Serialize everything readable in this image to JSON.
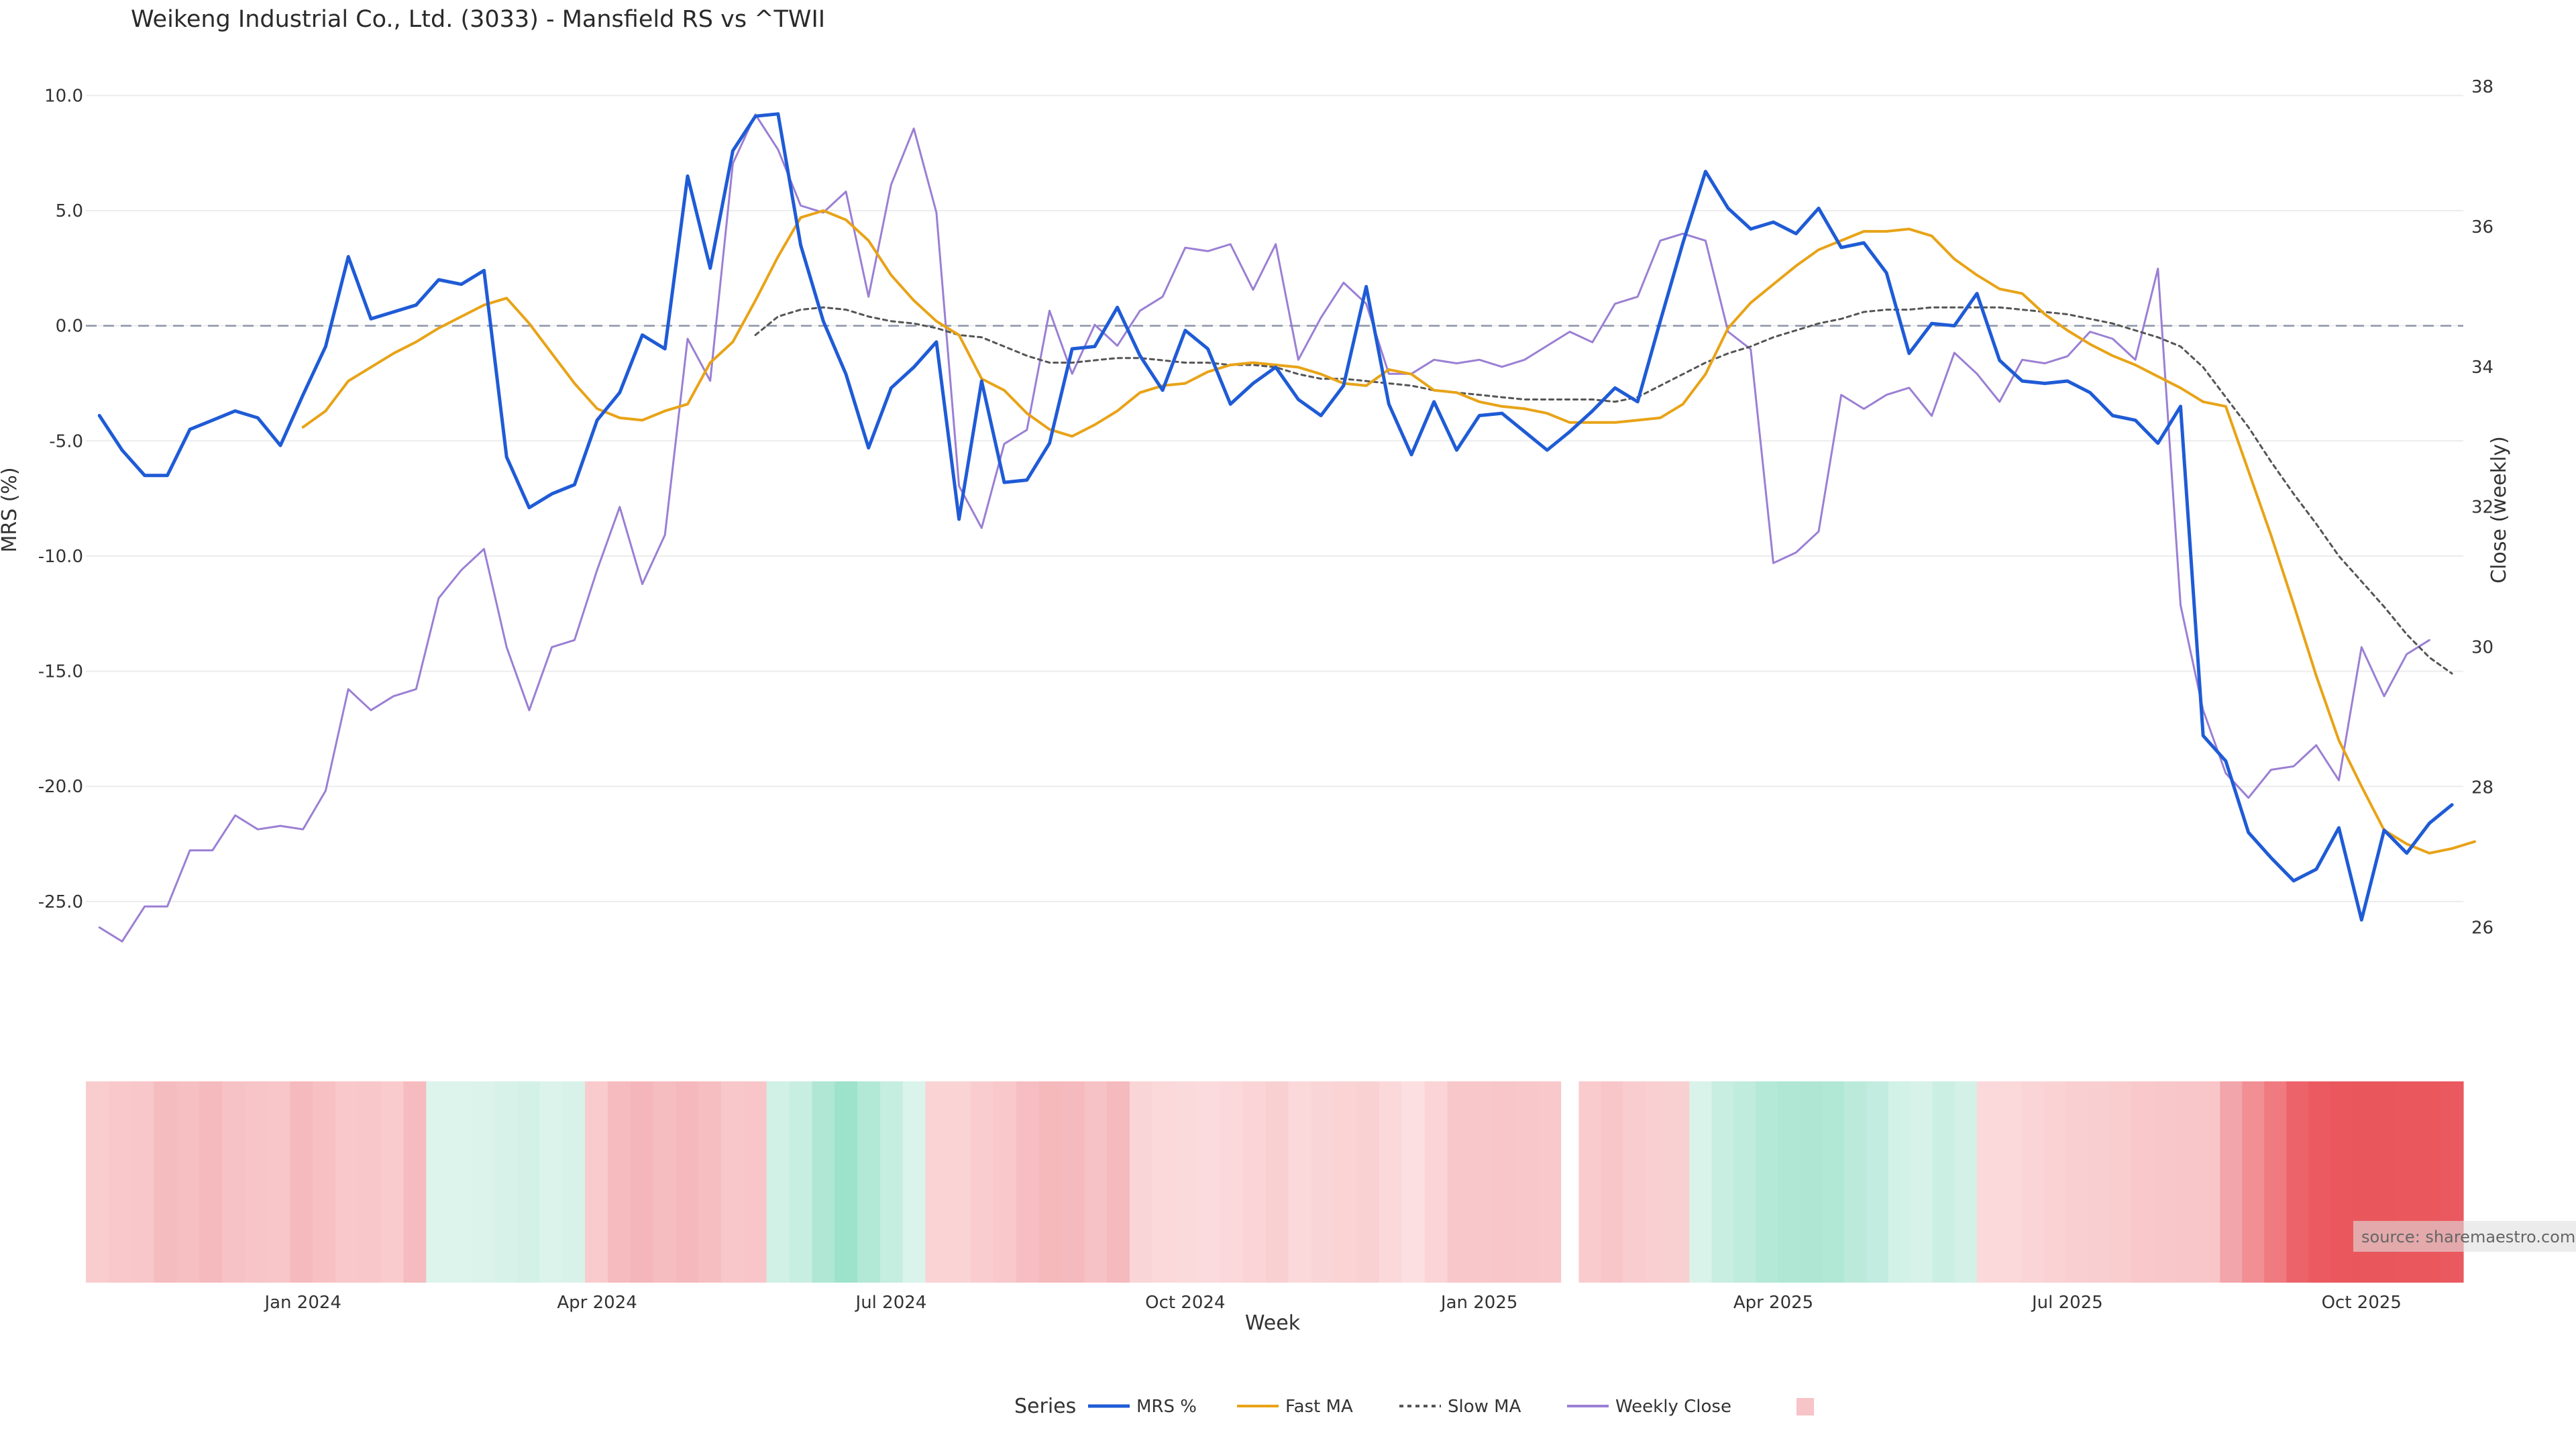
{
  "chart_data": {
    "type": "line",
    "title": "Weikeng Industrial Co., Ltd. (3033) - Mansfield RS vs ^TWII",
    "xlabel": "Week",
    "ylabel": "MRS (%)",
    "y2label": "Close (weekly)",
    "ylim": [
      -27.8,
      11.0
    ],
    "y2lim": [
      25.45,
      38.2
    ],
    "yticks": [
      "10.0",
      "5.0",
      "0.0",
      "-5.0",
      "-10.0",
      "-15.0",
      "-20.0",
      "-25.0"
    ],
    "y2ticks": [
      "38",
      "36",
      "34",
      "32",
      "30",
      "28",
      "26"
    ],
    "xticks": [
      {
        "label": "Jan 2024",
        "week": 9
      },
      {
        "label": "Apr 2024",
        "week": 22
      },
      {
        "label": "Jul 2024",
        "week": 35
      },
      {
        "label": "Oct 2024",
        "week": 48
      },
      {
        "label": "Jan 2025",
        "week": 61
      },
      {
        "label": "Apr 2025",
        "week": 74
      },
      {
        "label": "Jul 2025",
        "week": 87
      },
      {
        "label": "Oct 2025",
        "week": 100
      }
    ],
    "week_range": [
      -0.6,
      104.5
    ],
    "reference_line": 0,
    "series": [
      {
        "name": "MRS %",
        "color": "#1f5bd6",
        "axis": "left",
        "start_week": 0,
        "values": [
          -3.9,
          -5.4,
          -6.5,
          -6.5,
          -4.5,
          -4.1,
          -3.7,
          -4.0,
          -5.2,
          -3.0,
          -0.9,
          3.0,
          0.3,
          0.6,
          0.9,
          2.0,
          1.8,
          2.4,
          -5.7,
          -7.9,
          -7.3,
          -6.9,
          -4.1,
          -2.9,
          -0.4,
          -1.0,
          6.5,
          2.5,
          7.6,
          9.1,
          9.2,
          3.5,
          0.2,
          -2.1,
          -5.3,
          -2.7,
          -1.8,
          -0.7,
          -8.4,
          -2.4,
          -6.8,
          -6.7,
          -5.1,
          -1.0,
          -0.9,
          0.8,
          -1.3,
          -2.8,
          -0.2,
          -1.0,
          -3.4,
          -2.5,
          -1.8,
          -3.2,
          -3.9,
          -2.6,
          1.7,
          -3.4,
          -5.6,
          -3.3,
          -5.4,
          -3.9,
          -3.8,
          -4.6,
          -5.4,
          -4.6,
          -3.7,
          -2.7,
          -3.3,
          0.2,
          3.6,
          6.7,
          5.1,
          4.2,
          4.5,
          4.0,
          5.1,
          3.4,
          3.6,
          2.3,
          -1.2,
          0.1,
          0.0,
          1.4,
          -1.5,
          -2.4,
          -2.5,
          -2.4,
          -2.9,
          -3.9,
          -4.1,
          -5.1,
          -3.5,
          -17.8,
          -18.9,
          -22.0,
          -23.1,
          -24.1,
          -23.6,
          -21.8,
          -25.8,
          -21.9,
          -22.9,
          -21.6,
          -20.8
        ]
      },
      {
        "name": "Fast MA",
        "color": "#e8a317",
        "axis": "left",
        "start_week": 9,
        "values": [
          -4.4,
          -3.7,
          -2.4,
          -1.8,
          -1.2,
          -0.7,
          -0.1,
          0.4,
          0.9,
          1.2,
          0.1,
          -1.2,
          -2.5,
          -3.6,
          -4.0,
          -4.1,
          -3.7,
          -3.4,
          -1.6,
          -0.7,
          1.1,
          3.0,
          4.7,
          5.0,
          4.6,
          3.7,
          2.2,
          1.1,
          0.2,
          -0.4,
          -2.3,
          -2.8,
          -3.8,
          -4.5,
          -4.8,
          -4.3,
          -3.7,
          -2.9,
          -2.6,
          -2.5,
          -2.0,
          -1.7,
          -1.6,
          -1.7,
          -1.8,
          -2.1,
          -2.5,
          -2.6,
          -1.9,
          -2.1,
          -2.8,
          -2.9,
          -3.3,
          -3.5,
          -3.6,
          -3.8,
          -4.2,
          -4.2,
          -4.2,
          -4.1,
          -4.0,
          -3.4,
          -2.1,
          -0.1,
          1.0,
          1.8,
          2.6,
          3.3,
          3.7,
          4.1,
          4.1,
          4.2,
          3.9,
          2.9,
          2.2,
          1.6,
          1.4,
          0.5,
          -0.2,
          -0.8,
          -1.3,
          -1.7,
          -2.2,
          -2.7,
          -3.3,
          -3.5,
          -6.3,
          -9.1,
          -12.1,
          -15.2,
          -18.0,
          -20.0,
          -21.9,
          -22.5,
          -22.9,
          -22.7,
          -22.4
        ]
      },
      {
        "name": "Slow MA",
        "color": "#555555",
        "axis": "left",
        "dashed": true,
        "start_week": 29,
        "values": [
          -0.4,
          0.4,
          0.7,
          0.8,
          0.7,
          0.4,
          0.2,
          0.1,
          -0.1,
          -0.4,
          -0.5,
          -0.9,
          -1.3,
          -1.6,
          -1.6,
          -1.5,
          -1.4,
          -1.4,
          -1.5,
          -1.6,
          -1.6,
          -1.7,
          -1.7,
          -1.8,
          -2.1,
          -2.3,
          -2.3,
          -2.4,
          -2.5,
          -2.6,
          -2.8,
          -2.9,
          -3.0,
          -3.1,
          -3.2,
          -3.2,
          -3.2,
          -3.2,
          -3.3,
          -3.1,
          -2.6,
          -2.1,
          -1.6,
          -1.2,
          -0.9,
          -0.5,
          -0.2,
          0.1,
          0.3,
          0.6,
          0.7,
          0.7,
          0.8,
          0.8,
          0.8,
          0.8,
          0.7,
          0.6,
          0.5,
          0.3,
          0.1,
          -0.2,
          -0.5,
          -0.9,
          -1.8,
          -3.1,
          -4.4,
          -5.9,
          -7.3,
          -8.6,
          -10.0,
          -11.1,
          -12.2,
          -13.4,
          -14.4,
          -15.1
        ]
      },
      {
        "name": "Weekly Close",
        "color": "#9b7fd4",
        "axis": "right",
        "start_week": 0,
        "values": [
          26.0,
          25.8,
          26.3,
          26.3,
          27.1,
          27.1,
          27.6,
          27.4,
          27.45,
          27.4,
          27.95,
          29.4,
          29.1,
          29.3,
          29.4,
          30.7,
          31.1,
          31.4,
          30.0,
          29.1,
          30.0,
          30.1,
          31.1,
          32.0,
          30.9,
          31.6,
          34.4,
          33.8,
          36.9,
          37.6,
          37.1,
          36.3,
          36.2,
          36.5,
          35.0,
          36.6,
          37.4,
          36.2,
          32.3,
          31.7,
          32.9,
          33.1,
          34.8,
          33.9,
          34.6,
          34.3,
          34.8,
          35.0,
          35.7,
          35.65,
          35.75,
          35.1,
          35.75,
          34.1,
          34.7,
          35.2,
          34.9,
          33.9,
          33.9,
          34.1,
          34.05,
          34.1,
          34.0,
          34.1,
          34.3,
          34.5,
          34.35,
          34.9,
          35.0,
          35.8,
          35.9,
          35.8,
          34.5,
          34.25,
          31.2,
          31.35,
          31.65,
          33.6,
          33.4,
          33.6,
          33.7,
          33.3,
          34.2,
          33.9,
          33.5,
          34.1,
          34.05,
          34.15,
          34.5,
          34.4,
          34.1,
          35.4,
          30.6,
          29.1,
          28.2,
          27.85,
          28.25,
          28.3,
          28.6,
          28.1,
          30.0,
          29.3,
          29.9,
          30.1
        ]
      }
    ],
    "heatmap": {
      "segments": [
        {
          "start_week": -0.6,
          "end_week": 64.6,
          "colors": [
            "#f9cdce",
            "#f8c8ca",
            "#f8c7c9",
            "#f5bcbf",
            "#f6bfc2",
            "#f5babe",
            "#f7c2c5",
            "#f7c4c7",
            "#f8c6c9",
            "#f5babd",
            "#f7c0c3",
            "#f8c8ca",
            "#f8c7ca",
            "#f9cbcd",
            "#f5bbbe",
            "#ddf4ec",
            "#ddf4ec",
            "#dbf3eb",
            "#d7f2e9",
            "#d4f1e7",
            "#dbf3eb",
            "#d8f2e9",
            "#f9cbcd",
            "#f5bbbe",
            "#f4b6ba",
            "#f6bdc1",
            "#f5b8bc",
            "#f6bec1",
            "#f8c7ca",
            "#f8c6c9",
            "#d1f0e6",
            "#c8eee1",
            "#afe7d4",
            "#9de2ca",
            "#b2e8d6",
            "#c5ede0",
            "#daf3eb",
            "#fad3d5",
            "#fad3d5",
            "#f9cdcf",
            "#f8c8cb",
            "#f6bec2",
            "#f5b9bc",
            "#f5babd",
            "#f7c2c5",
            "#f5babe",
            "#fad5d7",
            "#fbd8da",
            "#fbdadc",
            "#fbdbdd",
            "#fbd8da",
            "#fad4d6",
            "#f9d0d2",
            "#fbd9db",
            "#fad5d7",
            "#fad3d5",
            "#fad1d3",
            "#fbd9db",
            "#fcdfe0",
            "#fad4d6",
            "#f8c7ca",
            "#f8c7ca",
            "#f8c6c9",
            "#f8c7ca",
            "#f8c8cb"
          ]
        },
        {
          "start_week": 65.4,
          "end_week": 104.5,
          "colors": [
            "#f9cbcd",
            "#f8c6c9",
            "#f9cdcf",
            "#f9cfd1",
            "#f9d0d2",
            "#d9f3ea",
            "#c7eee1",
            "#c0ecdd",
            "#b4e8d7",
            "#afe7d4",
            "#aee6d3",
            "#b1e7d5",
            "#bbeadb",
            "#c2ecdf",
            "#d2f1e7",
            "#d6f2e9",
            "#ccefe3",
            "#d3f1e7",
            "#fbd9db",
            "#fbd8da",
            "#fad5d7",
            "#fad2d4",
            "#f9cfd1",
            "#f9ced0",
            "#f9ccce",
            "#f8c8cb",
            "#f8c7ca",
            "#f8c6c9",
            "#f8c5c8",
            "#f2a5aa",
            "#f18f94",
            "#ef7a80",
            "#ec6469",
            "#ea5a60",
            "#ea585e",
            "#e9575d",
            "#e9575d",
            "#ea585e",
            "#ea585e",
            "#ea595f"
          ]
        }
      ]
    },
    "legend": {
      "title": "Series",
      "position": "bottom-center",
      "items": [
        {
          "label": "MRS %",
          "color": "#1f5bd6",
          "style": "solid"
        },
        {
          "label": "Fast MA",
          "color": "#e8a317",
          "style": "solid"
        },
        {
          "label": "Slow MA",
          "color": "#555555",
          "style": "dashed"
        },
        {
          "label": "Weekly Close",
          "color": "#9b7fd4",
          "style": "solid"
        },
        {
          "label": "",
          "color": "#f7c4c7",
          "style": "swatch"
        }
      ]
    },
    "watermark": "source: sharemaestro.com",
    "grid": true
  }
}
